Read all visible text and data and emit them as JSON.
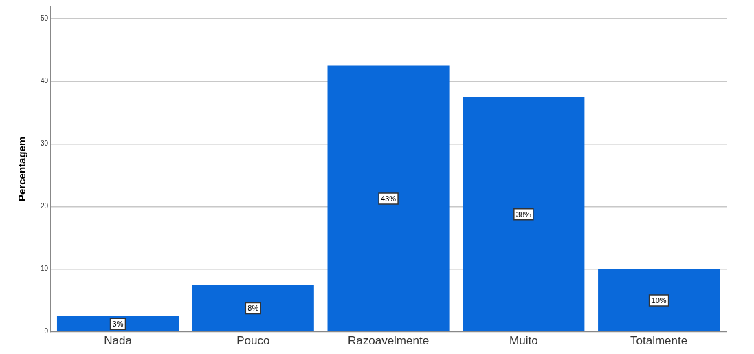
{
  "chart_data": {
    "type": "bar",
    "ylabel": "Percentagem",
    "categories": [
      "Nada",
      "Pouco",
      "Razoavelmente",
      "Muito",
      "Totalmente"
    ],
    "values": [
      2.5,
      7.5,
      42.5,
      37.5,
      10
    ],
    "value_labels": [
      "3%",
      "8%",
      "43%",
      "38%",
      "10%"
    ],
    "color": "#0a69da",
    "ylim": [
      0,
      52
    ],
    "yticks": [
      0,
      10,
      20,
      30,
      40,
      50
    ],
    "grid": "y",
    "legend": false
  }
}
